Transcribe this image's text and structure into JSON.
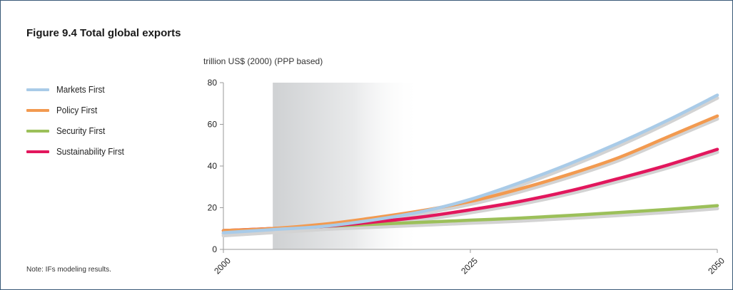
{
  "figure": {
    "title": "Figure 9.4 Total global exports",
    "note": "Note: IFs modeling results."
  },
  "legend": {
    "items": [
      {
        "label": "Markets First",
        "color": "#a9cbe8"
      },
      {
        "label": "Policy First",
        "color": "#f29a50"
      },
      {
        "label": "Security First",
        "color": "#9cc05a"
      },
      {
        "label": "Sustainability First",
        "color": "#e2175d"
      }
    ]
  },
  "chart_data": {
    "type": "line",
    "title": "",
    "xlabel": "",
    "ylabel": "trillion US$ (2000) (PPP based)",
    "xlim": [
      2000,
      2050
    ],
    "ylim": [
      0,
      80
    ],
    "x_ticks": [
      "2000",
      "2025",
      "2050"
    ],
    "y_ticks": [
      "0",
      "20",
      "40",
      "60",
      "80"
    ],
    "grid": false,
    "legend_position": "left",
    "shaded_region": {
      "from": 2005,
      "to": 2020,
      "style": "gradient-grey"
    },
    "x": [
      2000,
      2005,
      2010,
      2015,
      2020,
      2025,
      2030,
      2035,
      2040,
      2045,
      2050
    ],
    "series": [
      {
        "name": "Markets First",
        "color": "#a9cbe8",
        "values": [
          8,
          9.5,
          11,
          14,
          18,
          24,
          32,
          41,
          51,
          62,
          74
        ]
      },
      {
        "name": "Policy First",
        "color": "#f29a50",
        "values": [
          9,
          10,
          12,
          15,
          18.5,
          23,
          29,
          36,
          44,
          54,
          64
        ]
      },
      {
        "name": "Security First",
        "color": "#9cc05a",
        "values": [
          9,
          10,
          11,
          12,
          13,
          14,
          15,
          16.3,
          17.7,
          19.2,
          21
        ]
      },
      {
        "name": "Sustainability First",
        "color": "#e2175d",
        "values": [
          9,
          10,
          11,
          13,
          15.5,
          19,
          23,
          28,
          34,
          40.5,
          48
        ]
      }
    ]
  }
}
